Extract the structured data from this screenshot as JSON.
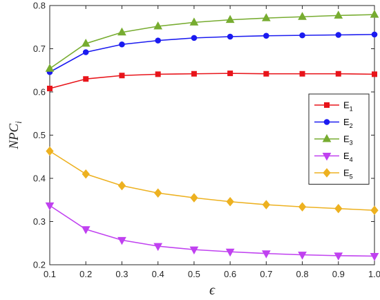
{
  "chart_data": {
    "type": "line",
    "title": "",
    "xlabel": "ϵ",
    "ylabel": "NPC",
    "ylabel_sub": "i",
    "x": [
      0.1,
      0.2,
      0.3,
      0.4,
      0.5,
      0.6,
      0.7,
      0.8,
      0.9,
      1.0
    ],
    "xlim": [
      0.1,
      1.0
    ],
    "ylim": [
      0.2,
      0.8
    ],
    "xticks": [
      "0.1",
      "0.2",
      "0.3",
      "0.4",
      "0.5",
      "0.6",
      "0.7",
      "0.8",
      "0.9",
      "1.0"
    ],
    "yticks": [
      "0.2",
      "0.3",
      "0.4",
      "0.5",
      "0.6",
      "0.7",
      "0.8"
    ],
    "grid": false,
    "legend_position": "right",
    "series": [
      {
        "name": "E",
        "sub": "1",
        "color": "#e8141a",
        "marker": "square",
        "values": [
          0.608,
          0.63,
          0.638,
          0.641,
          0.642,
          0.643,
          0.642,
          0.642,
          0.642,
          0.641
        ]
      },
      {
        "name": "E",
        "sub": "2",
        "color": "#1b1bf0",
        "marker": "circle",
        "values": [
          0.646,
          0.692,
          0.71,
          0.719,
          0.725,
          0.728,
          0.73,
          0.731,
          0.732,
          0.733
        ]
      },
      {
        "name": "E",
        "sub": "3",
        "color": "#77ac30",
        "marker": "triangle-up",
        "values": [
          0.654,
          0.712,
          0.738,
          0.752,
          0.761,
          0.767,
          0.771,
          0.774,
          0.777,
          0.779
        ]
      },
      {
        "name": "E",
        "sub": "4",
        "color": "#c041f0",
        "marker": "triangle-down",
        "values": [
          0.337,
          0.282,
          0.257,
          0.243,
          0.235,
          0.23,
          0.226,
          0.223,
          0.221,
          0.22
        ]
      },
      {
        "name": "E",
        "sub": "5",
        "color": "#edb120",
        "marker": "diamond",
        "values": [
          0.463,
          0.41,
          0.383,
          0.366,
          0.355,
          0.346,
          0.339,
          0.334,
          0.33,
          0.326
        ]
      }
    ]
  }
}
